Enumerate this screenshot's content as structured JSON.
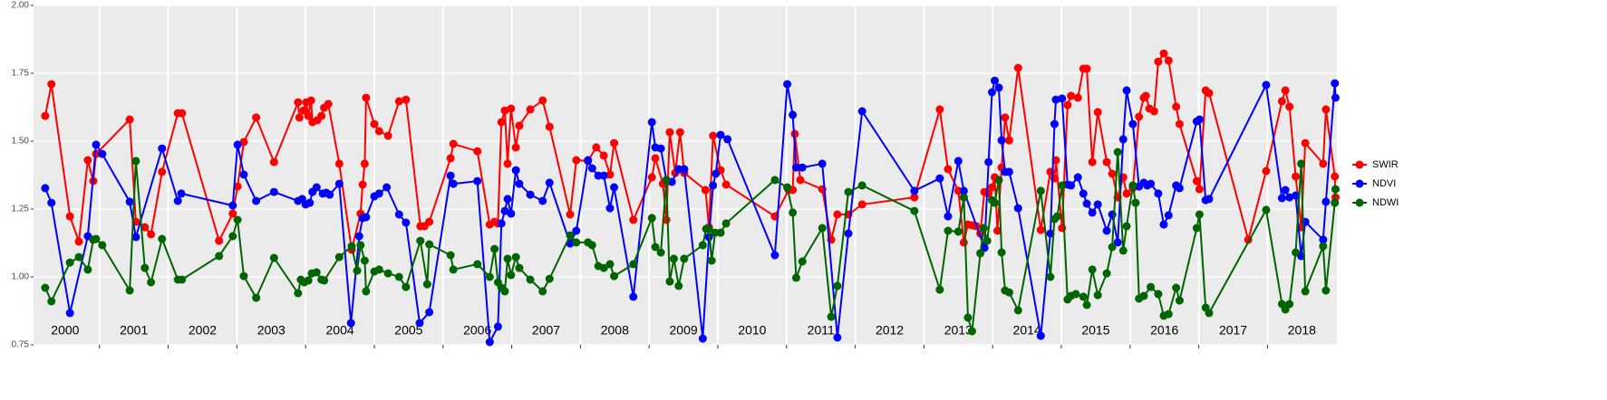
{
  "chart_data": {
    "type": "line",
    "legend": "right",
    "grid": true,
    "xlim": [
      2000.04,
      2019.01
    ],
    "ylim": [
      0.75,
      2.0
    ],
    "yticks": [
      {
        "value": 0.75,
        "label": "0.75"
      },
      {
        "value": 1,
        "label": "1.00"
      },
      {
        "value": 1.25,
        "label": "1.25"
      },
      {
        "value": 1.5,
        "label": "1.50"
      },
      {
        "value": 1.75,
        "label": "1.75"
      },
      {
        "value": 2,
        "label": "2.00"
      }
    ],
    "xgrid": [
      2001,
      2002,
      2003,
      2004,
      2005,
      2006,
      2007,
      2008,
      2009,
      2010,
      2011,
      2012,
      2013,
      2014,
      2015,
      2016,
      2017,
      2018
    ],
    "xticks": [
      {
        "value": 2000.5,
        "label": "2000"
      },
      {
        "value": 2001.5,
        "label": "2001"
      },
      {
        "value": 2002.5,
        "label": "2002"
      },
      {
        "value": 2003.5,
        "label": "2003"
      },
      {
        "value": 2004.5,
        "label": "2004"
      },
      {
        "value": 2005.5,
        "label": "2005"
      },
      {
        "value": 2006.5,
        "label": "2006"
      },
      {
        "value": 2007.5,
        "label": "2007"
      },
      {
        "value": 2008.5,
        "label": "2008"
      },
      {
        "value": 2009.5,
        "label": "2009"
      },
      {
        "value": 2010.5,
        "label": "2010"
      },
      {
        "value": 2011.5,
        "label": "2011"
      },
      {
        "value": 2012.5,
        "label": "2012"
      },
      {
        "value": 2013.5,
        "label": "2013"
      },
      {
        "value": 2014.5,
        "label": "2014"
      },
      {
        "value": 2015.5,
        "label": "2015"
      },
      {
        "value": 2016.5,
        "label": "2016"
      },
      {
        "value": 2017.5,
        "label": "2017"
      },
      {
        "value": 2018.5,
        "label": "2018"
      }
    ],
    "series": [
      {
        "name": "SWIR",
        "color": "#ff0000",
        "x": [
          2000.21,
          2000.3,
          2000.57,
          2000.7,
          2000.83,
          2000.91,
          2000.95,
          2001.44,
          2001.53,
          2001.66,
          2001.75,
          2001.91,
          2002.14,
          2002.2,
          2002.74,
          2002.94,
          2003.01,
          2003.1,
          2003.28,
          2003.54,
          2003.89,
          2003.91,
          2003.97,
          2004.01,
          2004.04,
          2004.08,
          2004.1,
          2004.17,
          2004.23,
          2004.27,
          2004.33,
          2004.49,
          2004.67,
          2004.8,
          2004.83,
          2004.86,
          2004.88,
          2005.0,
          2005.07,
          2005.2,
          2005.36,
          2005.46,
          2005.67,
          2005.73,
          2005.8,
          2006.11,
          2006.15,
          2006.5,
          2006.68,
          2006.75,
          2006.8,
          2006.85,
          2006.9,
          2006.94,
          2006.99,
          2007.06,
          2007.11,
          2007.27,
          2007.45,
          2007.55,
          2007.85,
          2007.94,
          2008.11,
          2008.23,
          2008.34,
          2008.43,
          2008.49,
          2008.77,
          2009.04,
          2009.09,
          2009.2,
          2009.25,
          2009.3,
          2009.38,
          2009.45,
          2009.51,
          2009.82,
          2009.87,
          2009.93,
          2010.04,
          2010.12,
          2010.83,
          2011.03,
          2011.09,
          2011.12,
          2011.2,
          2011.52,
          2011.65,
          2011.74,
          2011.9,
          2012.1,
          2012.86,
          2013.23,
          2013.35,
          2013.5,
          2013.58,
          2013.64,
          2013.7,
          2013.76,
          2013.82,
          2013.88,
          2013.94,
          2013.99,
          2014.03,
          2014.07,
          2014.13,
          2014.18,
          2014.24,
          2014.37,
          2014.7,
          2014.84,
          2014.9,
          2014.92,
          2015.01,
          2015.09,
          2015.14,
          2015.24,
          2015.32,
          2015.37,
          2015.45,
          2015.53,
          2015.66,
          2015.74,
          2015.82,
          2015.9,
          2015.95,
          2016.04,
          2016.13,
          2016.2,
          2016.23,
          2016.28,
          2016.35,
          2016.41,
          2016.49,
          2016.56,
          2016.67,
          2016.72,
          2016.97,
          2017.01,
          2017.1,
          2017.15,
          2017.72,
          2017.98,
          2018.21,
          2018.26,
          2018.32,
          2018.41,
          2018.49,
          2018.55,
          2018.81,
          2018.85,
          2018.98,
          2018.99
        ],
        "values": [
          1.593,
          1.71,
          1.223,
          1.13,
          1.43,
          1.353,
          1.453,
          1.58,
          1.203,
          1.183,
          1.157,
          1.387,
          1.603,
          1.603,
          1.133,
          1.233,
          1.333,
          1.497,
          1.587,
          1.423,
          1.643,
          1.587,
          1.613,
          1.643,
          1.593,
          1.65,
          1.57,
          1.577,
          1.593,
          1.623,
          1.637,
          1.417,
          1.1,
          1.233,
          1.34,
          1.417,
          1.66,
          1.563,
          1.537,
          1.52,
          1.647,
          1.653,
          1.187,
          1.187,
          1.203,
          1.437,
          1.49,
          1.463,
          1.193,
          1.203,
          1.197,
          1.57,
          1.613,
          1.417,
          1.62,
          1.477,
          1.557,
          1.617,
          1.65,
          1.553,
          1.23,
          1.43,
          1.427,
          1.477,
          1.447,
          1.377,
          1.493,
          1.21,
          1.367,
          1.437,
          1.343,
          1.21,
          1.533,
          1.383,
          1.533,
          1.383,
          1.32,
          1.183,
          1.52,
          1.393,
          1.34,
          1.223,
          1.32,
          1.32,
          1.527,
          1.357,
          1.323,
          1.137,
          1.23,
          1.23,
          1.267,
          1.293,
          1.617,
          1.397,
          1.317,
          1.127,
          1.193,
          1.19,
          1.187,
          1.16,
          1.313,
          1.307,
          1.33,
          1.367,
          1.17,
          1.403,
          1.587,
          1.503,
          1.77,
          1.173,
          1.387,
          1.363,
          1.43,
          1.18,
          1.633,
          1.667,
          1.66,
          1.767,
          1.767,
          1.423,
          1.607,
          1.423,
          1.38,
          1.293,
          1.367,
          1.307,
          1.327,
          1.59,
          1.66,
          1.667,
          1.62,
          1.61,
          1.793,
          1.823,
          1.797,
          1.627,
          1.563,
          1.353,
          1.323,
          1.687,
          1.677,
          1.137,
          1.39,
          1.647,
          1.687,
          1.627,
          1.37,
          1.183,
          1.493,
          1.417,
          1.617,
          1.37,
          1.293
        ]
      },
      {
        "name": "NDVI",
        "color": "#0000ff",
        "x": [
          2000.21,
          2000.3,
          2000.57,
          2000.83,
          2000.95,
          2001.04,
          2001.44,
          2001.53,
          2001.91,
          2002.14,
          2002.19,
          2002.94,
          2003.01,
          2003.1,
          2003.28,
          2003.54,
          2003.89,
          2003.95,
          2004.0,
          2004.06,
          2004.1,
          2004.16,
          2004.25,
          2004.3,
          2004.35,
          2004.49,
          2004.66,
          2004.78,
          2004.83,
          2004.88,
          2005.0,
          2005.07,
          2005.18,
          2005.36,
          2005.46,
          2005.66,
          2005.8,
          2006.11,
          2006.15,
          2006.5,
          2006.68,
          2006.8,
          2006.85,
          2006.9,
          2006.94,
          2006.99,
          2007.06,
          2007.11,
          2007.27,
          2007.45,
          2007.55,
          2007.85,
          2007.94,
          2008.11,
          2008.17,
          2008.26,
          2008.34,
          2008.43,
          2008.49,
          2008.77,
          2009.04,
          2009.09,
          2009.17,
          2009.25,
          2009.33,
          2009.43,
          2009.51,
          2009.78,
          2009.87,
          2009.93,
          2009.97,
          2010.04,
          2010.14,
          2010.83,
          2011.01,
          2011.09,
          2011.14,
          2011.23,
          2011.52,
          2011.74,
          2011.9,
          2012.1,
          2012.86,
          2013.23,
          2013.35,
          2013.5,
          2013.58,
          2013.88,
          2013.94,
          2013.99,
          2014.03,
          2014.09,
          2014.13,
          2014.18,
          2014.24,
          2014.37,
          2014.7,
          2014.84,
          2014.9,
          2014.92,
          2015.01,
          2015.09,
          2015.14,
          2015.24,
          2015.32,
          2015.37,
          2015.45,
          2015.53,
          2015.66,
          2015.74,
          2015.82,
          2015.9,
          2015.95,
          2016.04,
          2016.13,
          2016.2,
          2016.25,
          2016.3,
          2016.41,
          2016.49,
          2016.56,
          2016.67,
          2016.72,
          2016.97,
          2017.01,
          2017.1,
          2017.15,
          2017.98,
          2018.21,
          2018.26,
          2018.32,
          2018.41,
          2018.49,
          2018.55,
          2018.81,
          2018.85,
          2018.98,
          2018.99
        ],
        "values": [
          1.327,
          1.273,
          0.867,
          1.15,
          1.487,
          1.453,
          1.277,
          1.147,
          1.473,
          1.28,
          1.307,
          1.263,
          1.487,
          1.377,
          1.28,
          1.313,
          1.28,
          1.287,
          1.267,
          1.273,
          1.313,
          1.33,
          1.307,
          1.31,
          1.303,
          1.343,
          0.83,
          1.15,
          1.217,
          1.22,
          1.297,
          1.307,
          1.33,
          1.23,
          1.2,
          0.83,
          0.87,
          1.373,
          1.343,
          1.353,
          0.76,
          0.817,
          1.197,
          1.243,
          1.287,
          1.233,
          1.393,
          1.343,
          1.303,
          1.28,
          1.347,
          1.123,
          1.17,
          1.43,
          1.4,
          1.373,
          1.373,
          1.253,
          1.33,
          0.927,
          1.57,
          1.477,
          1.473,
          1.357,
          1.35,
          1.397,
          1.397,
          0.773,
          1.147,
          1.337,
          1.38,
          1.523,
          1.507,
          1.08,
          1.71,
          1.597,
          1.403,
          1.403,
          1.417,
          0.777,
          1.16,
          1.61,
          1.317,
          1.363,
          1.223,
          1.427,
          1.317,
          1.107,
          1.423,
          1.68,
          1.723,
          1.697,
          1.503,
          1.387,
          1.387,
          1.253,
          0.783,
          1.16,
          1.563,
          1.653,
          1.657,
          1.34,
          1.337,
          1.367,
          1.307,
          1.27,
          1.237,
          1.267,
          1.17,
          1.23,
          1.127,
          1.507,
          1.687,
          1.563,
          1.333,
          1.347,
          1.337,
          1.343,
          1.307,
          1.193,
          1.227,
          1.337,
          1.327,
          1.573,
          1.58,
          1.283,
          1.287,
          1.707,
          1.29,
          1.32,
          1.293,
          1.3,
          1.077,
          1.203,
          1.137,
          1.277,
          1.713,
          1.66
        ]
      },
      {
        "name": "NDWI",
        "color": "#006400",
        "x": [
          2000.21,
          2000.3,
          2000.57,
          2000.7,
          2000.83,
          2000.91,
          2000.95,
          2001.04,
          2001.44,
          2001.53,
          2001.66,
          2001.75,
          2001.91,
          2002.14,
          2002.2,
          2002.74,
          2002.94,
          2003.01,
          2003.1,
          2003.28,
          2003.54,
          2003.89,
          2003.93,
          2003.98,
          2004.04,
          2004.09,
          2004.16,
          2004.23,
          2004.27,
          2004.49,
          2004.67,
          2004.75,
          2004.8,
          2004.86,
          2004.88,
          2005.0,
          2005.07,
          2005.2,
          2005.36,
          2005.46,
          2005.67,
          2005.77,
          2005.8,
          2006.11,
          2006.15,
          2006.5,
          2006.68,
          2006.75,
          2006.8,
          2006.85,
          2006.9,
          2006.94,
          2006.99,
          2007.06,
          2007.11,
          2007.27,
          2007.45,
          2007.55,
          2007.85,
          2007.94,
          2008.11,
          2008.17,
          2008.26,
          2008.34,
          2008.43,
          2008.49,
          2008.77,
          2009.04,
          2009.09,
          2009.17,
          2009.25,
          2009.3,
          2009.36,
          2009.43,
          2009.51,
          2009.78,
          2009.83,
          2009.87,
          2009.91,
          2009.96,
          2010.04,
          2010.12,
          2010.83,
          2011.01,
          2011.09,
          2011.14,
          2011.23,
          2011.52,
          2011.65,
          2011.74,
          2011.9,
          2012.1,
          2012.86,
          2013.23,
          2013.35,
          2013.5,
          2013.58,
          2013.64,
          2013.7,
          2013.82,
          2013.87,
          2013.92,
          2013.99,
          2014.03,
          2014.09,
          2014.13,
          2014.18,
          2014.24,
          2014.37,
          2014.7,
          2014.84,
          2014.9,
          2014.94,
          2015.01,
          2015.09,
          2015.14,
          2015.21,
          2015.32,
          2015.37,
          2015.45,
          2015.53,
          2015.66,
          2015.74,
          2015.82,
          2015.9,
          2015.95,
          2016.04,
          2016.08,
          2016.13,
          2016.2,
          2016.3,
          2016.41,
          2016.49,
          2016.56,
          2016.67,
          2016.72,
          2016.97,
          2017.01,
          2017.1,
          2017.15,
          2017.98,
          2018.21,
          2018.26,
          2018.32,
          2018.41,
          2018.49,
          2018.55,
          2018.81,
          2018.85,
          2018.98,
          2018.99
        ],
        "values": [
          0.96,
          0.91,
          1.053,
          1.073,
          1.027,
          1.137,
          1.14,
          1.117,
          0.95,
          1.427,
          1.033,
          0.98,
          1.14,
          0.99,
          0.99,
          1.077,
          1.15,
          1.21,
          1.003,
          0.923,
          1.07,
          0.94,
          0.99,
          0.98,
          0.987,
          1.013,
          1.017,
          0.99,
          0.987,
          1.073,
          1.113,
          1.023,
          1.117,
          1.06,
          0.947,
          1.02,
          1.027,
          1.013,
          1.0,
          0.963,
          1.133,
          0.973,
          1.12,
          1.08,
          1.027,
          1.047,
          1.0,
          1.103,
          0.98,
          0.96,
          0.947,
          1.067,
          1.007,
          1.073,
          1.033,
          0.99,
          0.947,
          0.993,
          1.153,
          1.127,
          1.127,
          1.117,
          1.04,
          1.033,
          1.047,
          1.003,
          1.047,
          1.217,
          1.11,
          1.09,
          1.357,
          0.983,
          1.067,
          0.967,
          1.067,
          1.117,
          1.177,
          1.177,
          1.06,
          1.163,
          1.163,
          1.197,
          1.357,
          1.33,
          1.237,
          0.997,
          1.057,
          1.18,
          0.853,
          0.967,
          1.313,
          1.337,
          1.243,
          0.953,
          1.17,
          1.167,
          1.293,
          0.85,
          0.8,
          1.087,
          1.18,
          1.133,
          1.283,
          1.273,
          1.357,
          1.09,
          0.95,
          0.943,
          0.877,
          1.317,
          1.0,
          1.213,
          1.223,
          1.337,
          0.917,
          0.93,
          0.937,
          0.927,
          0.897,
          1.027,
          0.933,
          1.013,
          1.11,
          1.46,
          1.097,
          1.187,
          1.337,
          1.273,
          0.92,
          0.93,
          0.963,
          0.937,
          0.857,
          0.863,
          0.96,
          0.913,
          1.18,
          1.23,
          0.887,
          0.867,
          1.247,
          0.9,
          0.88,
          0.9,
          1.09,
          1.417,
          0.947,
          1.113,
          0.95,
          1.273,
          1.323
        ]
      }
    ]
  }
}
